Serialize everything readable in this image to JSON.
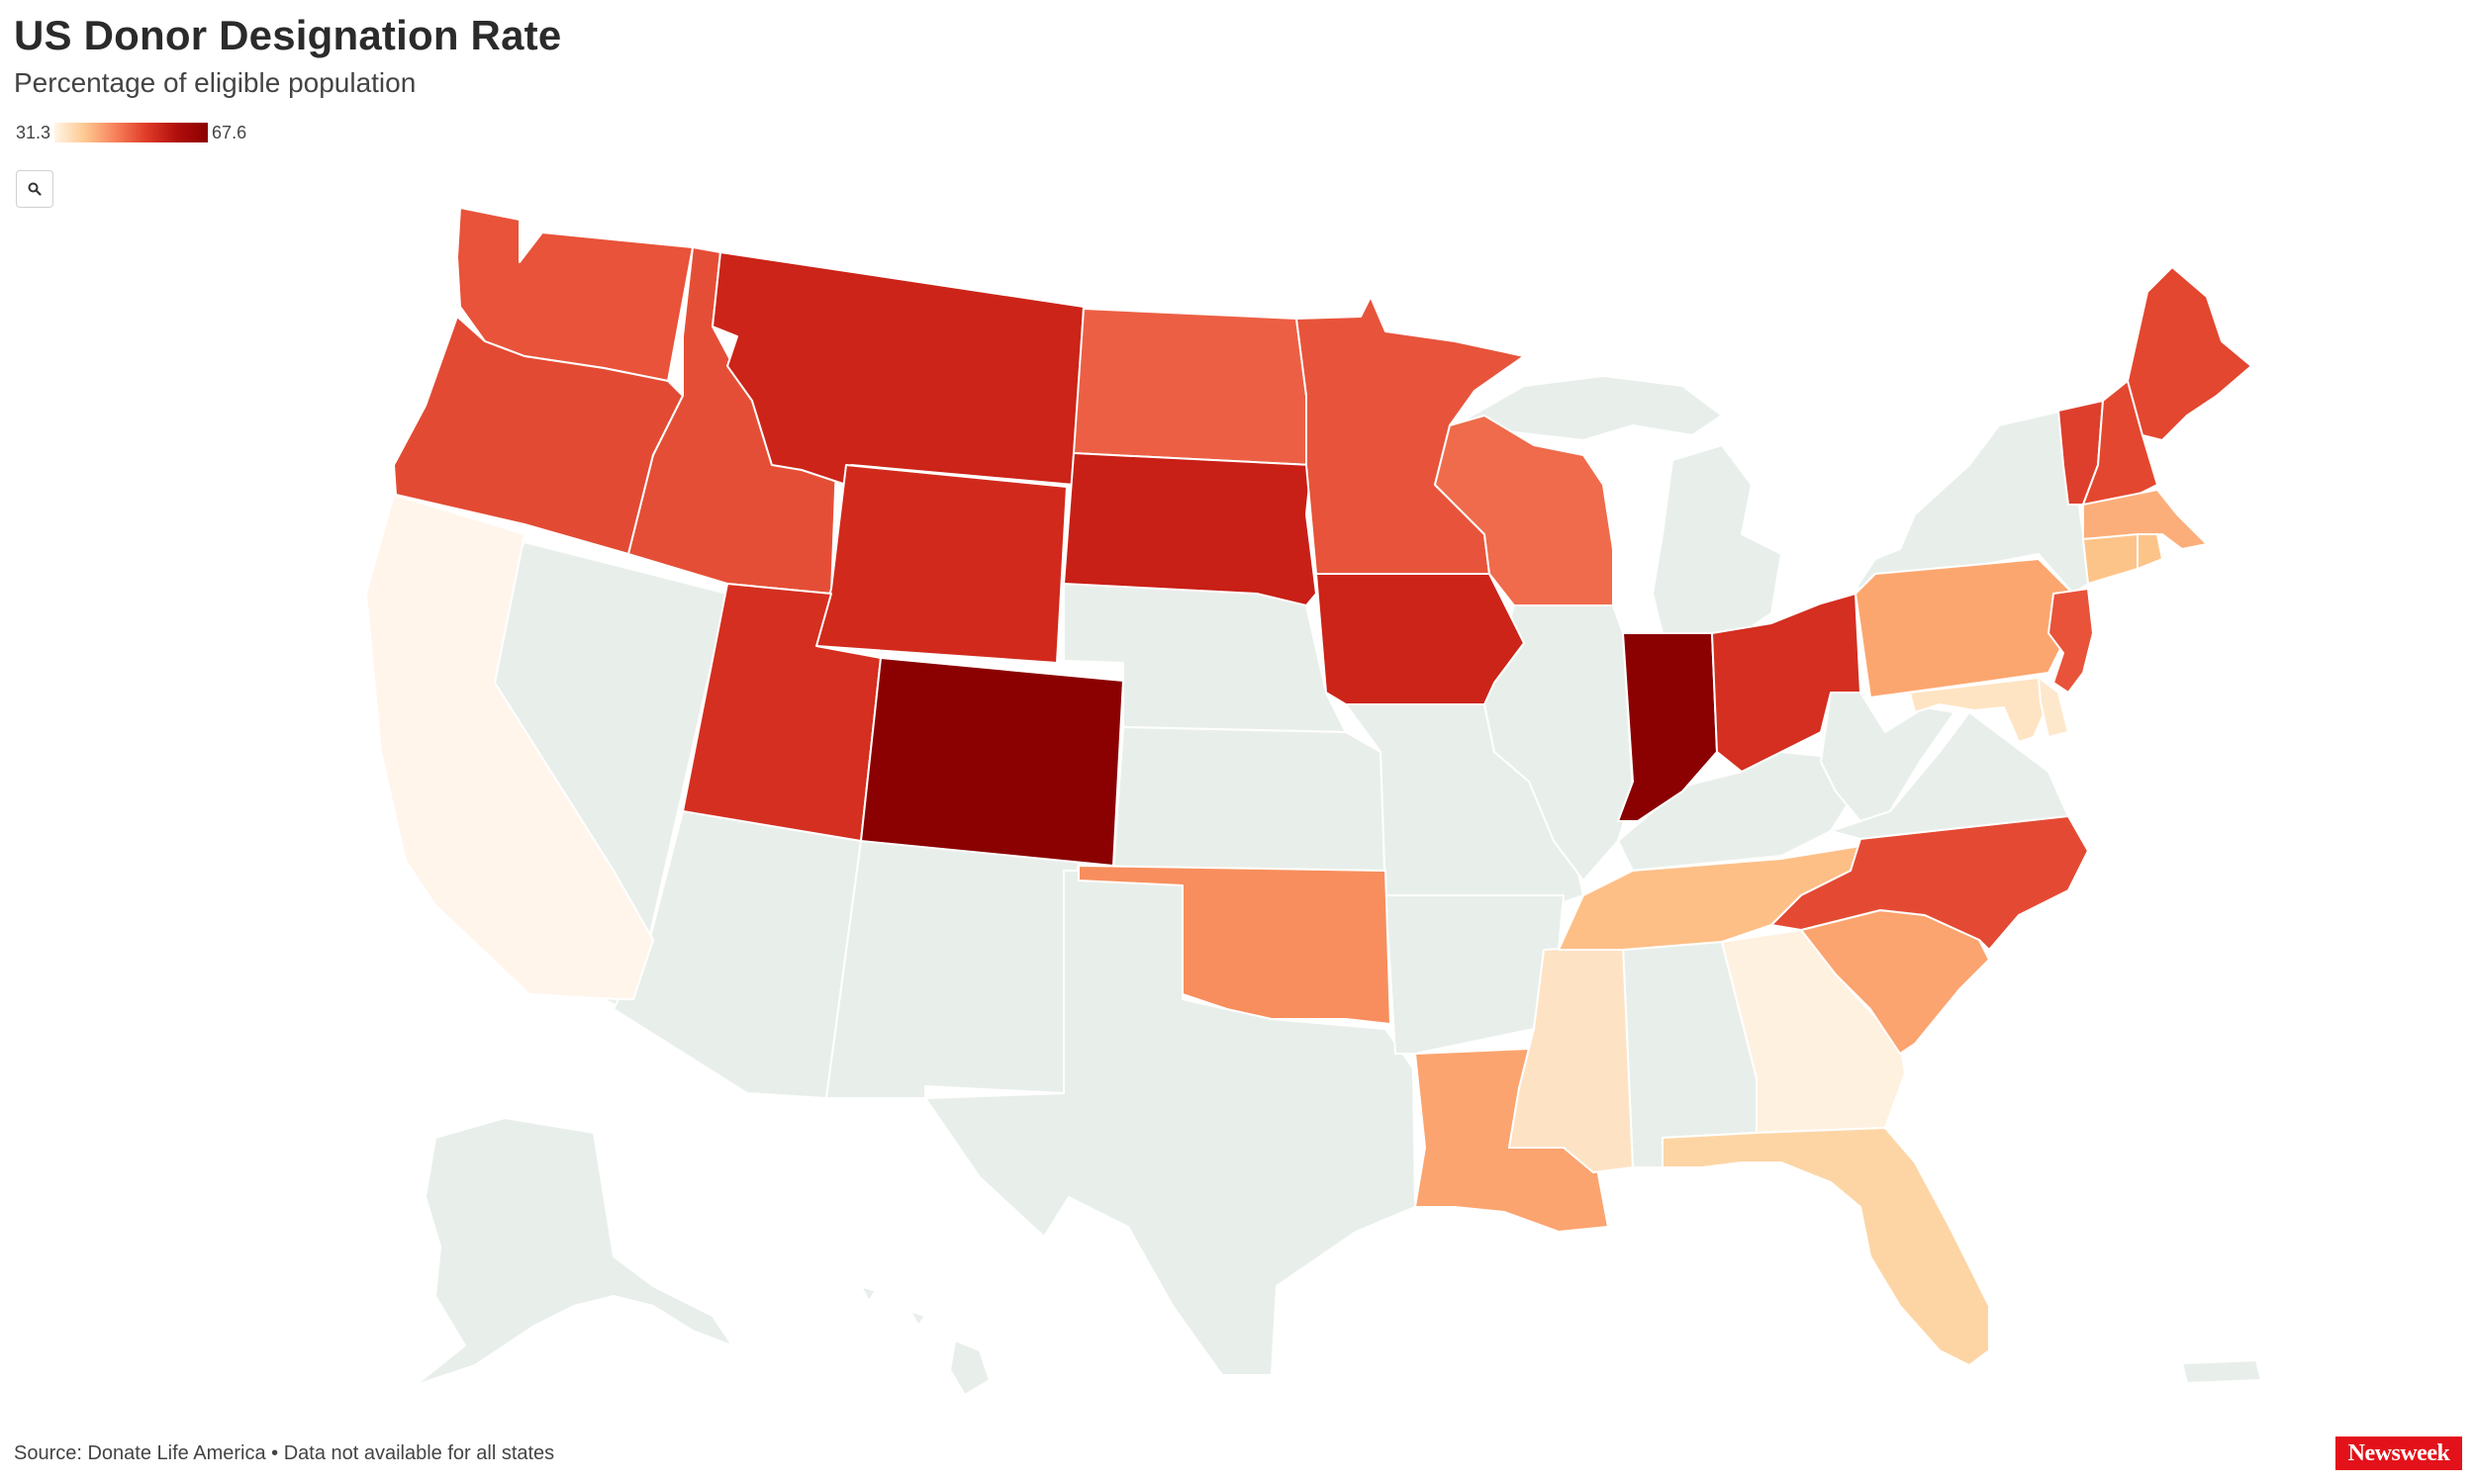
{
  "title": "US Donor Designation Rate",
  "subtitle": "Percentage of eligible population",
  "legend": {
    "min_label": "31.3",
    "max_label": "67.6",
    "min": 31.3,
    "max": 67.6
  },
  "zoom_icon": "search-icon",
  "no_data_color": "#e8efeb",
  "colors": {
    "brand": "#e3121a"
  },
  "footer": {
    "source": "Source: Donate Life America • Data not available for all states",
    "logo": "Newsweek"
  },
  "states": [
    {
      "name": "Washington",
      "color": "#e8533a"
    },
    {
      "name": "Oregon",
      "color": "#e34a33"
    },
    {
      "name": "California",
      "color": "#fff5eb"
    },
    {
      "name": "Idaho",
      "color": "#e54e36"
    },
    {
      "name": "Montana",
      "color": "#cc2419"
    },
    {
      "name": "Wyoming",
      "color": "#d12a1d"
    },
    {
      "name": "Utah",
      "color": "#d42f20"
    },
    {
      "name": "Colorado",
      "color": "#8b0000"
    },
    {
      "name": "North Dakota",
      "color": "#ec5f44"
    },
    {
      "name": "South Dakota",
      "color": "#c81f16"
    },
    {
      "name": "Minnesota",
      "color": "#e7543b"
    },
    {
      "name": "Iowa",
      "color": "#cc2419"
    },
    {
      "name": "Wisconsin",
      "color": "#ef6b4b"
    },
    {
      "name": "Oklahoma",
      "color": "#f88e5d"
    },
    {
      "name": "Louisiana",
      "color": "#fba46f"
    },
    {
      "name": "Mississippi",
      "color": "#fde3c4"
    },
    {
      "name": "Tennessee",
      "color": "#fdbf86"
    },
    {
      "name": "Georgia",
      "color": "#fff1e0"
    },
    {
      "name": "Florida",
      "color": "#fdd5a5"
    },
    {
      "name": "South Carolina",
      "color": "#fba46f"
    },
    {
      "name": "North Carolina",
      "color": "#e44a33"
    },
    {
      "name": "Indiana",
      "color": "#8b0000"
    },
    {
      "name": "Ohio",
      "color": "#d42f20"
    },
    {
      "name": "Pennsylvania",
      "color": "#fca66f"
    },
    {
      "name": "New Jersey",
      "color": "#e8533a"
    },
    {
      "name": "Maryland",
      "color": "#fee4c2"
    },
    {
      "name": "Delaware",
      "color": "#fee8cc"
    },
    {
      "name": "Vermont",
      "color": "#de3f2d"
    },
    {
      "name": "New Hampshire",
      "color": "#e3472f"
    },
    {
      "name": "Maine",
      "color": "#e3472f"
    },
    {
      "name": "Massachusetts",
      "color": "#fbae7a"
    },
    {
      "name": "Connecticut",
      "color": "#fdc48a"
    },
    {
      "name": "Rhode Island",
      "color": "#fdc48a"
    }
  ]
}
